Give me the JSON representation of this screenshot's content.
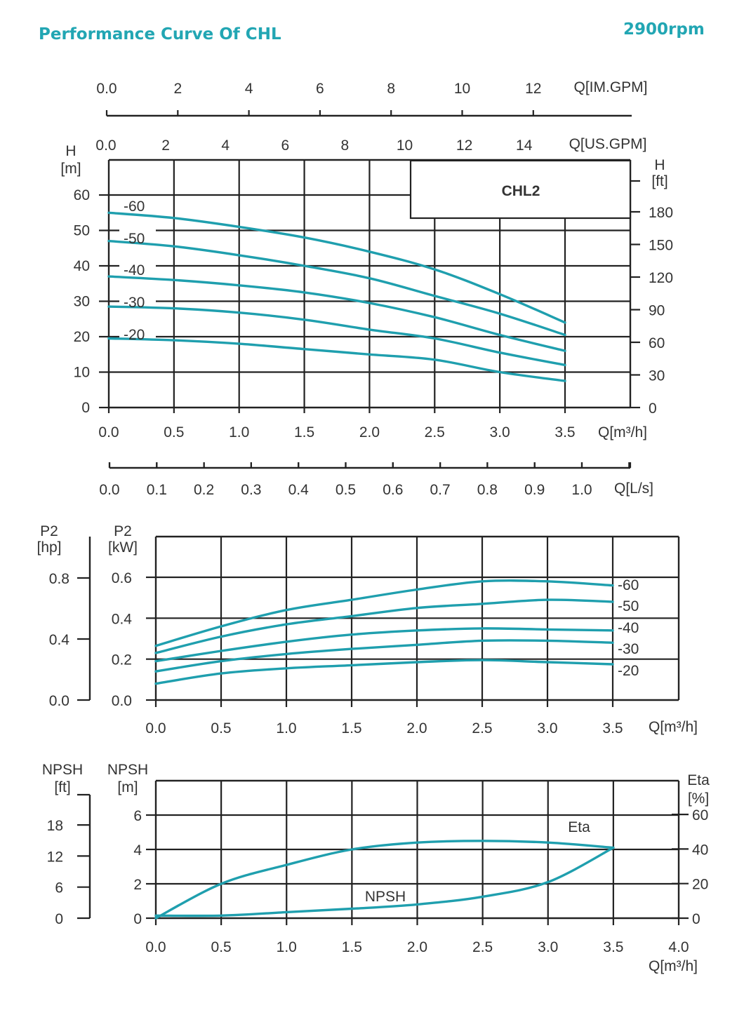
{
  "header": {
    "title": "Performance Curve Of CHL",
    "speed": "2900rpm"
  },
  "colors": {
    "curve": "#1f9fae",
    "accent": "#22a6b3",
    "grid": "#222222",
    "text": "#333333"
  },
  "chart_data": [
    {
      "type": "line",
      "chart": "head",
      "model_label": "CHL2",
      "xlabel": "Q[m³/h]",
      "ylabel": "H [m]",
      "ylabel_right": "H [ft]",
      "xlim": [
        0,
        3.5
      ],
      "ylim": [
        0,
        60
      ],
      "x_ticks": [
        "0.0",
        "0.5",
        "1.0",
        "1.5",
        "2.0",
        "2.5",
        "3.0",
        "3.5"
      ],
      "y_ticks": [
        "0",
        "10",
        "20",
        "30",
        "40",
        "50",
        "60"
      ],
      "y_right_ticks": [
        "0",
        "30",
        "60",
        "90",
        "120",
        "150",
        "180"
      ],
      "extra_axes": [
        {
          "label": "Q[IM.GPM]",
          "ticks": [
            "0.0",
            "2",
            "4",
            "6",
            "8",
            "10",
            "12"
          ]
        },
        {
          "label": "Q[US.GPM]",
          "ticks": [
            "0.0",
            "2",
            "4",
            "6",
            "8",
            "10",
            "12",
            "14"
          ]
        },
        {
          "label": "Q[L/s]",
          "ticks": [
            "0.0",
            "0.1",
            "0.2",
            "0.3",
            "0.4",
            "0.5",
            "0.6",
            "0.7",
            "0.8",
            "0.9",
            "1.0"
          ]
        }
      ],
      "series": [
        {
          "name": "-60",
          "x": [
            0,
            0.5,
            1,
            1.5,
            2,
            2.5,
            3,
            3.5
          ],
          "y": [
            55,
            53.5,
            51,
            48,
            44,
            39,
            32,
            24
          ]
        },
        {
          "name": "-50",
          "x": [
            0,
            0.5,
            1,
            1.5,
            2,
            2.5,
            3,
            3.5
          ],
          "y": [
            47,
            45.5,
            43,
            40,
            36.5,
            31.5,
            26.5,
            20.5
          ]
        },
        {
          "name": "-40",
          "x": [
            0,
            0.5,
            1,
            1.5,
            2,
            2.5,
            3,
            3.5
          ],
          "y": [
            37,
            36,
            34.5,
            32.5,
            29.5,
            25.5,
            20.5,
            16
          ]
        },
        {
          "name": "-30",
          "x": [
            0,
            0.5,
            1,
            1.5,
            2,
            2.5,
            3,
            3.5
          ],
          "y": [
            28.5,
            28,
            26.8,
            24.8,
            22,
            19.5,
            15.5,
            12
          ]
        },
        {
          "name": "-20",
          "x": [
            0,
            0.5,
            1,
            1.5,
            2,
            2.5,
            3,
            3.5
          ],
          "y": [
            19.5,
            19,
            18,
            16.5,
            15,
            13.5,
            10,
            7.5
          ]
        }
      ]
    },
    {
      "type": "line",
      "chart": "power",
      "xlabel": "Q[m³/h]",
      "ylabel": "P2 [kW]",
      "ylabel_left": "P2 [hp]",
      "xlim": [
        0,
        3.5
      ],
      "ylim": [
        0,
        0.8
      ],
      "x_ticks": [
        "0.0",
        "0.5",
        "1.0",
        "1.5",
        "2.0",
        "2.5",
        "3.0",
        "3.5"
      ],
      "y_ticks": [
        "0.0",
        "0.2",
        "0.4",
        "0.6"
      ],
      "y_left_ticks": [
        "0.0",
        "0.4",
        "0.8"
      ],
      "series": [
        {
          "name": "-60",
          "x": [
            0,
            0.5,
            1,
            1.5,
            2,
            2.5,
            3,
            3.5
          ],
          "y": [
            0.265,
            0.36,
            0.44,
            0.49,
            0.54,
            0.58,
            0.58,
            0.56
          ]
        },
        {
          "name": "-50",
          "x": [
            0,
            0.5,
            1,
            1.5,
            2,
            2.5,
            3,
            3.5
          ],
          "y": [
            0.23,
            0.31,
            0.37,
            0.41,
            0.45,
            0.47,
            0.49,
            0.48
          ]
        },
        {
          "name": "-40",
          "x": [
            0,
            0.5,
            1,
            1.5,
            2,
            2.5,
            3,
            3.5
          ],
          "y": [
            0.19,
            0.24,
            0.285,
            0.32,
            0.34,
            0.35,
            0.345,
            0.34
          ]
        },
        {
          "name": "-30",
          "x": [
            0,
            0.5,
            1,
            1.5,
            2,
            2.5,
            3,
            3.5
          ],
          "y": [
            0.14,
            0.19,
            0.225,
            0.25,
            0.27,
            0.29,
            0.29,
            0.28
          ]
        },
        {
          "name": "-20",
          "x": [
            0,
            0.5,
            1,
            1.5,
            2,
            2.5,
            3,
            3.5
          ],
          "y": [
            0.08,
            0.13,
            0.155,
            0.17,
            0.185,
            0.195,
            0.185,
            0.175
          ]
        }
      ]
    },
    {
      "type": "line",
      "chart": "npsh_eta",
      "xlabel": "Q[m³/h]",
      "ylabel": "NPSH [m]",
      "ylabel_left": "NPSH [ft]",
      "ylabel_right": "Eta [%]",
      "xlim": [
        0,
        4.0
      ],
      "ylim": [
        0,
        6
      ],
      "x_ticks": [
        "0.0",
        "0.5",
        "1.0",
        "1.5",
        "2.0",
        "2.5",
        "3.0",
        "3.5",
        "4.0"
      ],
      "y_ticks": [
        "0",
        "2",
        "4",
        "6"
      ],
      "y_left_ticks": [
        "0",
        "6",
        "12",
        "18"
      ],
      "y_right_ticks": [
        "0",
        "20",
        "40",
        "60"
      ],
      "series": [
        {
          "name": "Eta",
          "x": [
            0,
            0.5,
            1,
            1.5,
            2,
            2.5,
            3,
            3.5
          ],
          "y": [
            0,
            20,
            31,
            40,
            44,
            45,
            44,
            41
          ]
        },
        {
          "name": "NPSH",
          "x": [
            0,
            0.5,
            1,
            1.5,
            2,
            2.5,
            3,
            3.5
          ],
          "y": [
            0.15,
            0.15,
            0.35,
            0.55,
            0.8,
            1.25,
            2.1,
            4.1
          ]
        }
      ]
    }
  ]
}
